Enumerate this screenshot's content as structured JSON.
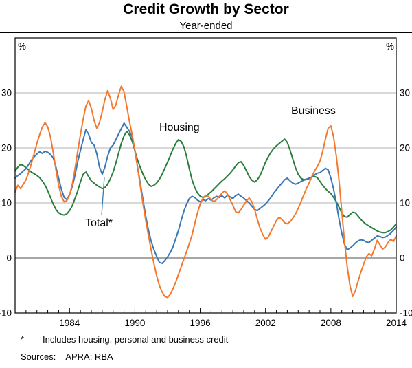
{
  "title": "Credit Growth by Sector",
  "subtitle": "Year-ended",
  "unit_left": "%",
  "unit_right": "%",
  "labels": {
    "housing": "Housing",
    "business": "Business",
    "total": "Total*"
  },
  "footnote": {
    "marker": "*",
    "text": "Includes housing, personal and business credit"
  },
  "sources": {
    "label": "Sources:",
    "value": "APRA; RBA"
  },
  "colors": {
    "housing": "#2a7e3b",
    "business": "#f4792e",
    "total": "#3a78b5",
    "grid": "#b3b3b3",
    "zero": "#4d4d4d",
    "frame": "#000000"
  },
  "chart_data": {
    "type": "line",
    "title": "Credit Growth by Sector",
    "subtitle": "Year-ended",
    "ylabel": "%",
    "xlim": [
      1979,
      2014
    ],
    "ylim": [
      -10,
      40
    ],
    "x_ticks": [
      1984,
      1990,
      1996,
      2002,
      2008,
      2014
    ],
    "y_ticks": [
      -10,
      0,
      10,
      20,
      30
    ],
    "grid": "horizontal",
    "x_start": 1979.0,
    "x_step": 0.25,
    "series": [
      {
        "name": "Housing",
        "color_key": "housing",
        "values": [
          15.8,
          16.5,
          17.0,
          16.8,
          16.4,
          16.0,
          15.6,
          15.3,
          15.0,
          14.6,
          14.0,
          13.2,
          12.2,
          11.0,
          9.8,
          8.8,
          8.2,
          7.9,
          7.8,
          8.0,
          8.6,
          9.5,
          10.8,
          12.2,
          13.8,
          15.2,
          15.6,
          14.8,
          14.0,
          13.6,
          13.2,
          12.9,
          12.6,
          12.8,
          13.4,
          14.4,
          15.6,
          17.2,
          19.0,
          20.8,
          22.2,
          23.0,
          22.4,
          21.2,
          19.5,
          17.8,
          16.4,
          15.2,
          14.2,
          13.4,
          13.0,
          13.2,
          13.6,
          14.3,
          15.2,
          16.3,
          17.4,
          18.6,
          19.8,
          20.8,
          21.5,
          21.2,
          20.2,
          18.4,
          16.2,
          14.2,
          12.8,
          11.8,
          11.2,
          11.0,
          11.2,
          11.6,
          12.0,
          12.5,
          13.0,
          13.5,
          14.0,
          14.4,
          14.9,
          15.4,
          16.0,
          16.7,
          17.3,
          17.5,
          16.8,
          15.8,
          14.8,
          14.1,
          13.8,
          14.2,
          15.0,
          16.2,
          17.4,
          18.4,
          19.2,
          19.9,
          20.4,
          20.8,
          21.2,
          21.6,
          21.0,
          19.6,
          18.0,
          16.4,
          15.2,
          14.5,
          14.2,
          14.3,
          14.5,
          14.7,
          14.8,
          14.6,
          13.9,
          13.2,
          12.6,
          12.1,
          11.7,
          11.0,
          10.2,
          9.2,
          8.2,
          7.5,
          7.4,
          7.9,
          8.3,
          8.2,
          7.6,
          7.0,
          6.5,
          6.1,
          5.8,
          5.5,
          5.2,
          4.9,
          4.7,
          4.6,
          4.6,
          4.8,
          5.1,
          5.6,
          6.2
        ]
      },
      {
        "name": "Total*",
        "color_key": "total",
        "values": [
          14.5,
          15.0,
          15.3,
          15.8,
          16.2,
          17.0,
          17.8,
          18.4,
          18.9,
          19.3,
          19.0,
          19.4,
          19.2,
          18.8,
          18.2,
          16.5,
          14.5,
          12.5,
          11.0,
          10.6,
          11.5,
          13.0,
          15.0,
          17.5,
          19.5,
          21.5,
          23.3,
          22.5,
          21.0,
          20.5,
          19.0,
          16.5,
          15.2,
          16.5,
          18.5,
          20.0,
          20.5,
          21.5,
          22.5,
          23.5,
          24.5,
          23.8,
          23.0,
          22.0,
          19.5,
          16.5,
          13.5,
          10.5,
          7.5,
          5.0,
          3.0,
          1.5,
          0.3,
          -0.8,
          -1.0,
          -0.5,
          0.2,
          1.0,
          2.0,
          3.5,
          5.0,
          6.8,
          8.5,
          9.8,
          10.8,
          11.2,
          11.0,
          10.5,
          10.2,
          10.6,
          10.4,
          10.8,
          10.5,
          10.9,
          11.2,
          11.0,
          11.3,
          10.9,
          11.4,
          11.1,
          10.8,
          11.3,
          11.6,
          11.2,
          10.9,
          10.4,
          10.0,
          9.4,
          8.8,
          8.6,
          9.0,
          9.4,
          9.8,
          10.4,
          11.0,
          11.8,
          12.4,
          13.0,
          13.6,
          14.2,
          14.5,
          14.0,
          13.6,
          13.4,
          13.6,
          13.9,
          14.1,
          14.3,
          14.4,
          14.7,
          15.1,
          15.4,
          15.5,
          15.9,
          16.3,
          16.0,
          14.5,
          12.5,
          10.0,
          7.0,
          4.5,
          2.5,
          1.5,
          1.8,
          2.2,
          2.7,
          3.1,
          3.3,
          3.2,
          2.9,
          2.8,
          3.2,
          3.6,
          4.0,
          3.9,
          3.7,
          3.8,
          4.1,
          4.5,
          5.0,
          5.6
        ]
      },
      {
        "name": "Business",
        "color_key": "business",
        "values": [
          12.0,
          13.2,
          12.6,
          13.4,
          14.2,
          15.6,
          17.2,
          19.0,
          20.8,
          22.4,
          23.8,
          24.6,
          23.8,
          22.0,
          19.2,
          16.0,
          13.2,
          11.2,
          10.2,
          10.4,
          11.4,
          13.4,
          16.2,
          19.4,
          22.4,
          25.2,
          27.6,
          28.6,
          27.2,
          25.0,
          23.6,
          24.6,
          26.6,
          28.8,
          30.4,
          29.0,
          27.0,
          27.8,
          29.6,
          31.2,
          30.2,
          27.6,
          24.8,
          22.4,
          19.6,
          16.4,
          13.0,
          9.8,
          6.8,
          4.0,
          1.4,
          -1.0,
          -3.2,
          -5.0,
          -6.2,
          -7.0,
          -7.2,
          -6.6,
          -5.6,
          -4.4,
          -3.0,
          -1.6,
          -0.2,
          1.2,
          2.6,
          4.2,
          6.2,
          8.2,
          9.8,
          10.8,
          11.4,
          11.2,
          10.6,
          10.2,
          10.6,
          11.2,
          11.8,
          12.2,
          11.6,
          10.6,
          9.6,
          8.4,
          8.2,
          8.8,
          9.6,
          10.4,
          10.9,
          10.2,
          8.8,
          7.0,
          5.4,
          4.2,
          3.4,
          3.8,
          4.8,
          5.8,
          6.8,
          7.4,
          7.0,
          6.4,
          6.2,
          6.6,
          7.2,
          8.0,
          9.0,
          10.2,
          11.4,
          12.6,
          13.6,
          14.8,
          15.8,
          16.6,
          17.6,
          19.4,
          21.6,
          23.6,
          24.0,
          22.0,
          18.5,
          14.0,
          8.5,
          3.0,
          -1.5,
          -5.0,
          -7.0,
          -6.0,
          -4.2,
          -2.6,
          -1.2,
          0.2,
          0.8,
          0.4,
          1.6,
          3.2,
          2.4,
          1.6,
          2.0,
          2.8,
          3.4,
          3.0,
          4.0
        ]
      }
    ]
  }
}
